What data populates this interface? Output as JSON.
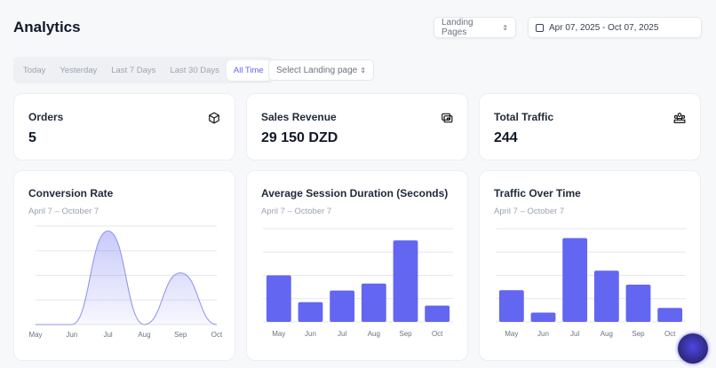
{
  "header": {
    "title": "Analytics",
    "landing_select": "Landing Pages",
    "date_range": "Apr 07, 2025 - Oct 07, 2025"
  },
  "tabs": [
    {
      "label": "Today"
    },
    {
      "label": "Yesterday"
    },
    {
      "label": "Last 7 Days"
    },
    {
      "label": "Last 30 Days"
    },
    {
      "label": "All Time",
      "active": true
    }
  ],
  "landing_page_select": "Select Landing page",
  "stats": [
    {
      "label": "Orders",
      "value": "5",
      "icon": "box-icon"
    },
    {
      "label": "Sales Revenue",
      "value": "29 150 DZD",
      "icon": "wallet-icon"
    },
    {
      "label": "Total Traffic",
      "value": "244",
      "icon": "users-icon"
    }
  ],
  "accent": "#6366f1",
  "chart_data": [
    {
      "type": "area",
      "title": "Conversion Rate",
      "subtitle": "April 7 – October 7",
      "categories": [
        "May",
        "Jun",
        "Jul",
        "Aug",
        "Sep",
        "Oct"
      ],
      "values": [
        0,
        0,
        3.8,
        0,
        2.1,
        0
      ],
      "ylim": [
        0,
        4
      ],
      "grid": true
    },
    {
      "type": "bar",
      "title": "Average Session Duration (Seconds)",
      "subtitle": "April 7 – October 7",
      "categories": [
        "May",
        "Jun",
        "Jul",
        "Aug",
        "Sep",
        "Oct"
      ],
      "values": [
        2,
        0.85,
        1.35,
        1.65,
        3.5,
        0.7
      ],
      "ylim": [
        0,
        4
      ],
      "grid": true
    },
    {
      "type": "bar",
      "title": "Traffic Over Time",
      "subtitle": "April 7 – October 7",
      "categories": [
        "May",
        "Jun",
        "Jul",
        "Aug",
        "Sep",
        "Oct"
      ],
      "values": [
        34,
        10,
        90,
        55,
        40,
        15
      ],
      "ylim": [
        0,
        100
      ],
      "grid": true
    }
  ]
}
